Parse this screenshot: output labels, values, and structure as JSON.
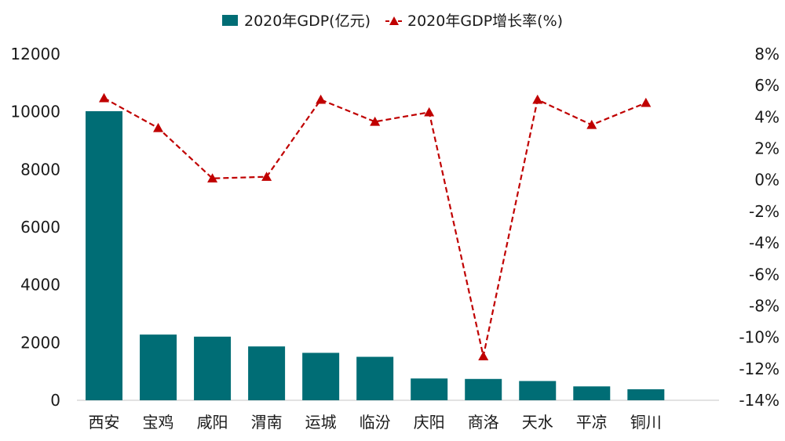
{
  "chart_data": {
    "type": "bar",
    "categories": [
      "西安",
      "宝鸡",
      "咸阳",
      "渭南",
      "运城",
      "临汾",
      "庆阳",
      "商洛",
      "天水",
      "平凉",
      "铜川"
    ],
    "series": [
      {
        "name": "2020年GDP(亿元)",
        "type": "bar",
        "axis": "left",
        "color": "#006d75",
        "values": [
          10020,
          2277,
          2205,
          1866,
          1644,
          1506,
          755,
          739,
          667,
          481,
          382
        ]
      },
      {
        "name": "2020年GDP增长率(%)",
        "type": "line",
        "axis": "right",
        "color": "#c00000",
        "line_style": "dashed",
        "marker": "triangle",
        "values": [
          5.2,
          3.3,
          0.1,
          0.2,
          5.1,
          3.7,
          4.3,
          -11.2,
          5.1,
          3.5,
          4.9
        ]
      }
    ],
    "y_left": {
      "ylim": [
        0,
        12000
      ],
      "ticks": [
        0,
        2000,
        4000,
        6000,
        8000,
        10000,
        12000
      ],
      "tick_labels": [
        "0",
        "2000",
        "4000",
        "6000",
        "8000",
        "10000",
        "12000"
      ]
    },
    "y_right": {
      "ylim": [
        -14,
        8
      ],
      "ticks": [
        -14,
        -12,
        -10,
        -8,
        -6,
        -4,
        -2,
        0,
        2,
        4,
        6,
        8
      ],
      "tick_labels": [
        "-14%",
        "-12%",
        "-10%",
        "-8%",
        "-6%",
        "-4%",
        "-2%",
        "0%",
        "2%",
        "4%",
        "6%",
        "8%"
      ]
    },
    "legend_position": "top-center",
    "grid": false
  }
}
